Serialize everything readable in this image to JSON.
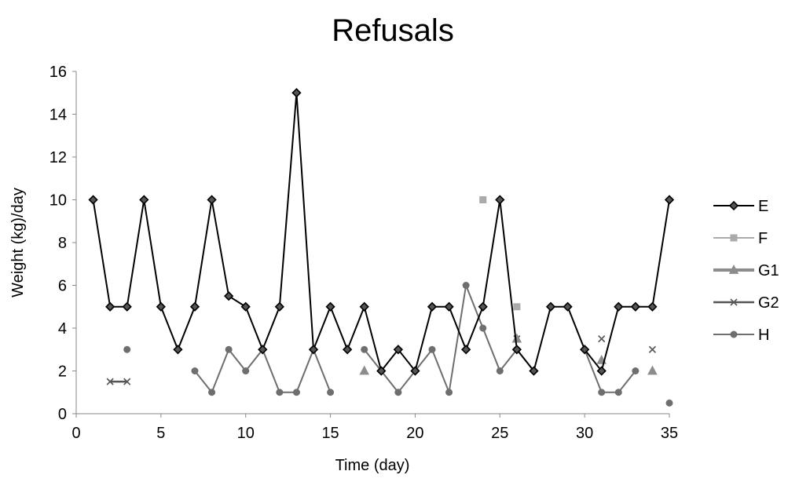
{
  "chart_data": {
    "type": "line",
    "title": "Refusals",
    "xlabel": "Time (day)",
    "ylabel": "Weight (kg)/day",
    "xlim": [
      0,
      35
    ],
    "ylim": [
      0,
      16
    ],
    "xticks": [
      0,
      5,
      10,
      15,
      20,
      25,
      30,
      35
    ],
    "yticks": [
      0,
      2,
      4,
      6,
      8,
      10,
      12,
      14,
      16
    ],
    "grid": false,
    "legend_position": "right",
    "series": [
      {
        "name": "E",
        "color": "#000000",
        "marker": "diamond",
        "points": [
          [
            1,
            10
          ],
          [
            2,
            5
          ],
          [
            3,
            5
          ],
          [
            4,
            10
          ],
          [
            5,
            5
          ],
          [
            6,
            3
          ],
          [
            7,
            5
          ],
          [
            8,
            10
          ],
          [
            9,
            5.5
          ],
          [
            10,
            5
          ],
          [
            11,
            3
          ],
          [
            12,
            5
          ],
          [
            13,
            15
          ],
          [
            14,
            3
          ],
          [
            15,
            5
          ],
          [
            16,
            3
          ],
          [
            17,
            5
          ],
          [
            18,
            2
          ],
          [
            19,
            3
          ],
          [
            20,
            2
          ],
          [
            21,
            5
          ],
          [
            22,
            5
          ],
          [
            23,
            3
          ],
          [
            24,
            5
          ],
          [
            25,
            10
          ],
          [
            26,
            3
          ],
          [
            27,
            2
          ],
          [
            28,
            5
          ],
          [
            29,
            5
          ],
          [
            30,
            3
          ],
          [
            31,
            2
          ],
          [
            32,
            5
          ],
          [
            33,
            5
          ],
          [
            34,
            5
          ],
          [
            35,
            10
          ]
        ]
      },
      {
        "name": "F",
        "color": "#aaaaaa",
        "marker": "square",
        "points": [
          [
            24,
            10
          ],
          [
            26,
            5
          ]
        ]
      },
      {
        "name": "G1",
        "color": "#8c8c8c",
        "marker": "triangle",
        "points": [
          [
            17,
            2
          ],
          [
            26,
            3.5
          ],
          [
            31,
            2.5
          ],
          [
            34,
            2
          ]
        ]
      },
      {
        "name": "G2",
        "color": "#555555",
        "marker": "x",
        "points": [
          [
            2,
            1.5
          ],
          [
            3,
            1.5
          ],
          [
            26,
            3.5
          ],
          [
            31,
            3.5
          ],
          [
            34,
            3
          ]
        ]
      },
      {
        "name": "H",
        "color": "#6e6e6e",
        "marker": "circle",
        "points": [
          [
            3,
            3
          ],
          [
            7,
            2
          ],
          [
            8,
            1
          ],
          [
            9,
            3
          ],
          [
            10,
            2
          ],
          [
            11,
            3
          ],
          [
            12,
            1
          ],
          [
            13,
            1
          ],
          [
            14,
            3
          ],
          [
            15,
            1
          ],
          [
            17,
            3
          ],
          [
            18,
            2
          ],
          [
            19,
            1
          ],
          [
            20,
            2
          ],
          [
            21,
            3
          ],
          [
            22,
            1
          ],
          [
            23,
            6
          ],
          [
            24,
            4
          ],
          [
            25,
            2
          ],
          [
            26,
            3
          ],
          [
            27,
            2
          ],
          [
            30,
            3
          ],
          [
            31,
            1
          ],
          [
            32,
            1
          ],
          [
            33,
            2
          ],
          [
            35,
            0.5
          ]
        ]
      }
    ]
  }
}
